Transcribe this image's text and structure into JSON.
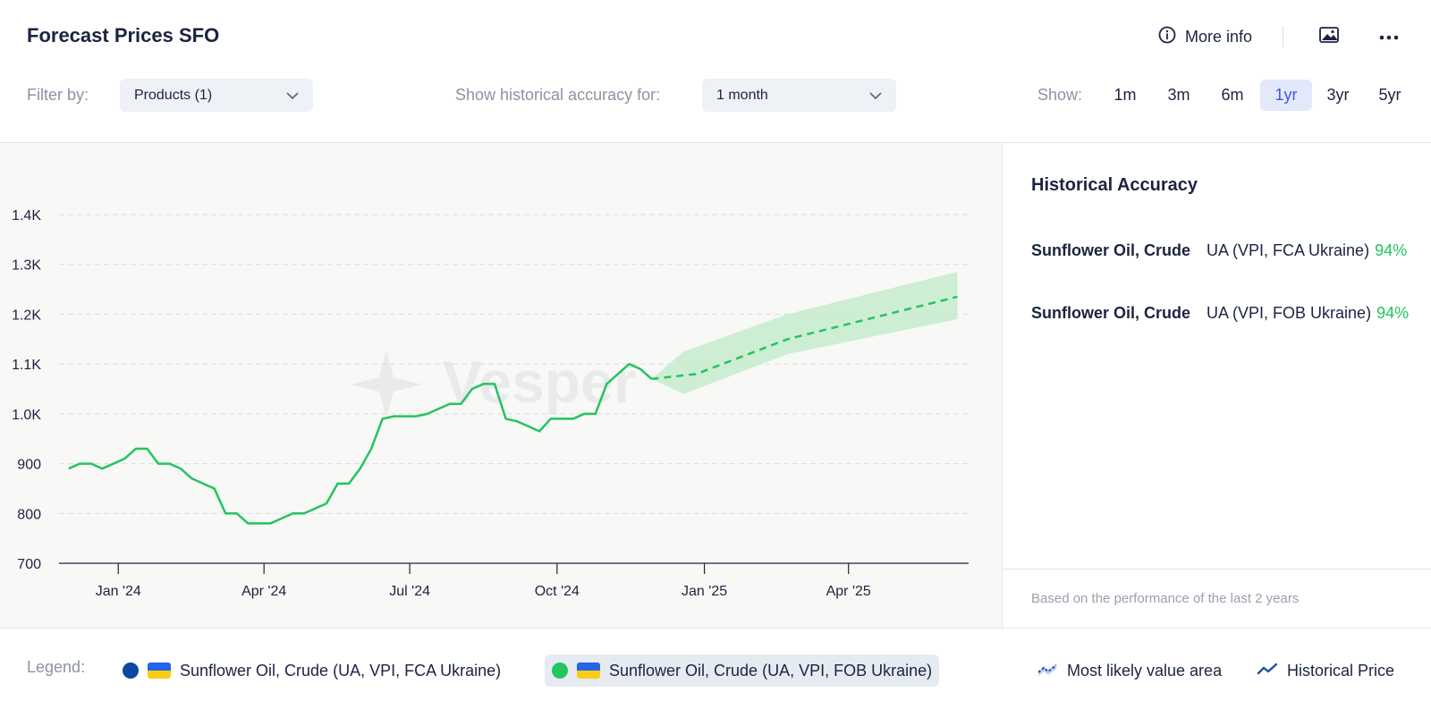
{
  "header": {
    "title": "Forecast Prices SFO",
    "more_info": "More info"
  },
  "filters": {
    "filter_label": "Filter by:",
    "products_value": "Products (1)",
    "accuracy_label": "Show historical accuracy for:",
    "accuracy_value": "1 month",
    "show_label": "Show:",
    "ranges": [
      "1m",
      "3m",
      "6m",
      "1yr",
      "3yr",
      "5yr"
    ],
    "active_range": "1yr"
  },
  "accuracy": {
    "title": "Historical Accuracy",
    "rows": [
      {
        "product": "Sunflower Oil, Crude",
        "variant": "UA (VPI, FCA Ukraine)",
        "pct": "94%"
      },
      {
        "product": "Sunflower Oil, Crude",
        "variant": "UA (VPI, FOB Ukraine)",
        "pct": "94%"
      }
    ],
    "note": "Based on the performance of the last 2 years"
  },
  "legend": {
    "label": "Legend:",
    "items": [
      {
        "name": "Sunflower Oil, Crude (UA, VPI, FCA Ukraine)",
        "color": "#0d47a1",
        "icon": "ukraine-flag-icon"
      },
      {
        "name": "Sunflower Oil, Crude (UA, VPI, FOB Ukraine)",
        "color": "#22c55e",
        "icon": "ukraine-flag-icon"
      }
    ],
    "value_area": "Most likely value area",
    "historical": "Historical Price"
  },
  "colors": {
    "accent": "#3d5be0",
    "series": "#22c55e",
    "band": "#c8eccf",
    "positive": "#22c55e"
  },
  "chart_data": {
    "type": "line",
    "watermark": "Vesper",
    "xlabel": "",
    "ylabel": "",
    "ylim": [
      700,
      1400
    ],
    "yticks": [
      700,
      800,
      900,
      1000,
      1100,
      1200,
      1300,
      1400
    ],
    "ytick_labels": [
      "700",
      "800",
      "900",
      "1.0K",
      "1.1K",
      "1.2K",
      "1.3K",
      "1.4K"
    ],
    "xlim": [
      "2023-11-25",
      "2025-06-15"
    ],
    "xticks": [
      {
        "date": "2024-01-01",
        "label": "Jan '24"
      },
      {
        "date": "2024-04-01",
        "label": "Apr '24"
      },
      {
        "date": "2024-07-01",
        "label": "Jul '24"
      },
      {
        "date": "2024-10-01",
        "label": "Oct '24"
      },
      {
        "date": "2025-01-01",
        "label": "Jan '25"
      },
      {
        "date": "2025-04-01",
        "label": "Apr '25"
      }
    ],
    "grid": true,
    "series": [
      {
        "name": "Sunflower Oil, Crude (UA, VPI, FOB Ukraine)",
        "style": "historical",
        "points": [
          [
            "2023-12-01",
            890
          ],
          [
            "2023-12-08",
            900
          ],
          [
            "2023-12-15",
            900
          ],
          [
            "2023-12-22",
            890
          ],
          [
            "2023-12-29",
            900
          ],
          [
            "2024-01-05",
            910
          ],
          [
            "2024-01-12",
            930
          ],
          [
            "2024-01-19",
            930
          ],
          [
            "2024-01-26",
            900
          ],
          [
            "2024-02-02",
            900
          ],
          [
            "2024-02-09",
            890
          ],
          [
            "2024-02-16",
            870
          ],
          [
            "2024-02-23",
            860
          ],
          [
            "2024-03-01",
            850
          ],
          [
            "2024-03-08",
            800
          ],
          [
            "2024-03-15",
            800
          ],
          [
            "2024-03-22",
            780
          ],
          [
            "2024-03-29",
            780
          ],
          [
            "2024-04-05",
            780
          ],
          [
            "2024-04-12",
            790
          ],
          [
            "2024-04-19",
            800
          ],
          [
            "2024-04-26",
            800
          ],
          [
            "2024-05-03",
            810
          ],
          [
            "2024-05-10",
            820
          ],
          [
            "2024-05-17",
            860
          ],
          [
            "2024-05-24",
            860
          ],
          [
            "2024-05-31",
            890
          ],
          [
            "2024-06-07",
            930
          ],
          [
            "2024-06-14",
            990
          ],
          [
            "2024-06-21",
            995
          ],
          [
            "2024-06-28",
            995
          ],
          [
            "2024-07-05",
            995
          ],
          [
            "2024-07-12",
            1000
          ],
          [
            "2024-07-19",
            1010
          ],
          [
            "2024-07-26",
            1020
          ],
          [
            "2024-08-02",
            1020
          ],
          [
            "2024-08-09",
            1050
          ],
          [
            "2024-08-16",
            1060
          ],
          [
            "2024-08-23",
            1060
          ],
          [
            "2024-08-30",
            990
          ],
          [
            "2024-09-06",
            985
          ],
          [
            "2024-09-13",
            975
          ],
          [
            "2024-09-20",
            965
          ],
          [
            "2024-09-27",
            990
          ],
          [
            "2024-10-04",
            990
          ],
          [
            "2024-10-11",
            990
          ],
          [
            "2024-10-18",
            1000
          ],
          [
            "2024-10-25",
            1000
          ],
          [
            "2024-11-01",
            1060
          ],
          [
            "2024-11-08",
            1080
          ],
          [
            "2024-11-15",
            1100
          ],
          [
            "2024-11-22",
            1090
          ],
          [
            "2024-11-29",
            1070
          ]
        ]
      },
      {
        "name": "Sunflower Oil, Crude (UA, VPI, FOB Ukraine)",
        "style": "forecast",
        "points": [
          [
            "2024-11-29",
            1070
          ],
          [
            "2024-12-27",
            1080
          ],
          [
            "2025-02-22",
            1150
          ],
          [
            "2025-06-08",
            1235
          ]
        ],
        "band_upper": [
          [
            "2024-11-29",
            1070
          ],
          [
            "2024-12-19",
            1125
          ],
          [
            "2025-02-22",
            1200
          ],
          [
            "2025-06-08",
            1285
          ]
        ],
        "band_lower": [
          [
            "2024-11-29",
            1070
          ],
          [
            "2024-12-19",
            1040
          ],
          [
            "2025-02-22",
            1120
          ],
          [
            "2025-06-08",
            1190
          ]
        ]
      }
    ]
  }
}
